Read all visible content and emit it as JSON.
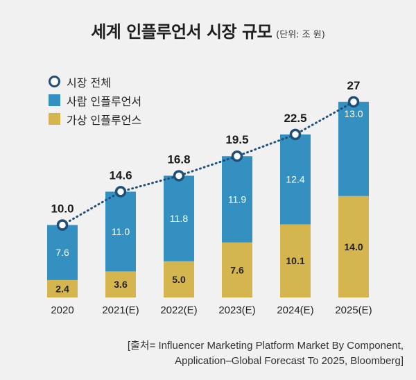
{
  "title": {
    "main": "세계 인플루언서 시장 규모",
    "unit": "(단위: 조 원)"
  },
  "legend": {
    "items": [
      {
        "label": "시장 전체",
        "type": "marker",
        "color": "#1f4e79"
      },
      {
        "label": "사람 인플루언서",
        "type": "box",
        "color": "#3490c0"
      },
      {
        "label": "가상 인플루언스",
        "type": "box",
        "color": "#d4b54e"
      }
    ]
  },
  "source": {
    "line1": "[출처= Influencer Marketing Platform Market By Component,",
    "line2": "Application–Global Forecast To 2025, Bloomberg]"
  },
  "chart_data": {
    "type": "bar",
    "stacked": true,
    "categories": [
      "2020",
      "2021(E)",
      "2022(E)",
      "2023(E)",
      "2024(E)",
      "2025(E)"
    ],
    "series": [
      {
        "name": "가상 인플루언스",
        "values": [
          2.4,
          3.6,
          5.0,
          7.6,
          10.1,
          14.0
        ],
        "labels": [
          "2.4",
          "3.6",
          "5.0",
          "7.6",
          "10.1",
          "14.0"
        ],
        "color": "#d4b54e"
      },
      {
        "name": "사람 인플루언서",
        "values": [
          7.6,
          11.0,
          11.8,
          11.9,
          12.4,
          13.0
        ],
        "labels": [
          "7.6",
          "11.0",
          "11.8",
          "11.9",
          "12.4",
          "13.0"
        ],
        "color": "#3490c0"
      }
    ],
    "total": {
      "name": "시장 전체",
      "values": [
        10.0,
        14.6,
        16.8,
        19.5,
        22.5,
        27
      ],
      "labels": [
        "10.0",
        "14.6",
        "16.8",
        "19.5",
        "22.5",
        "27"
      ],
      "color": "#1f4e79",
      "line": "dotted"
    },
    "ylim": [
      0,
      30
    ],
    "grid": false,
    "legend_position": "top-left"
  }
}
